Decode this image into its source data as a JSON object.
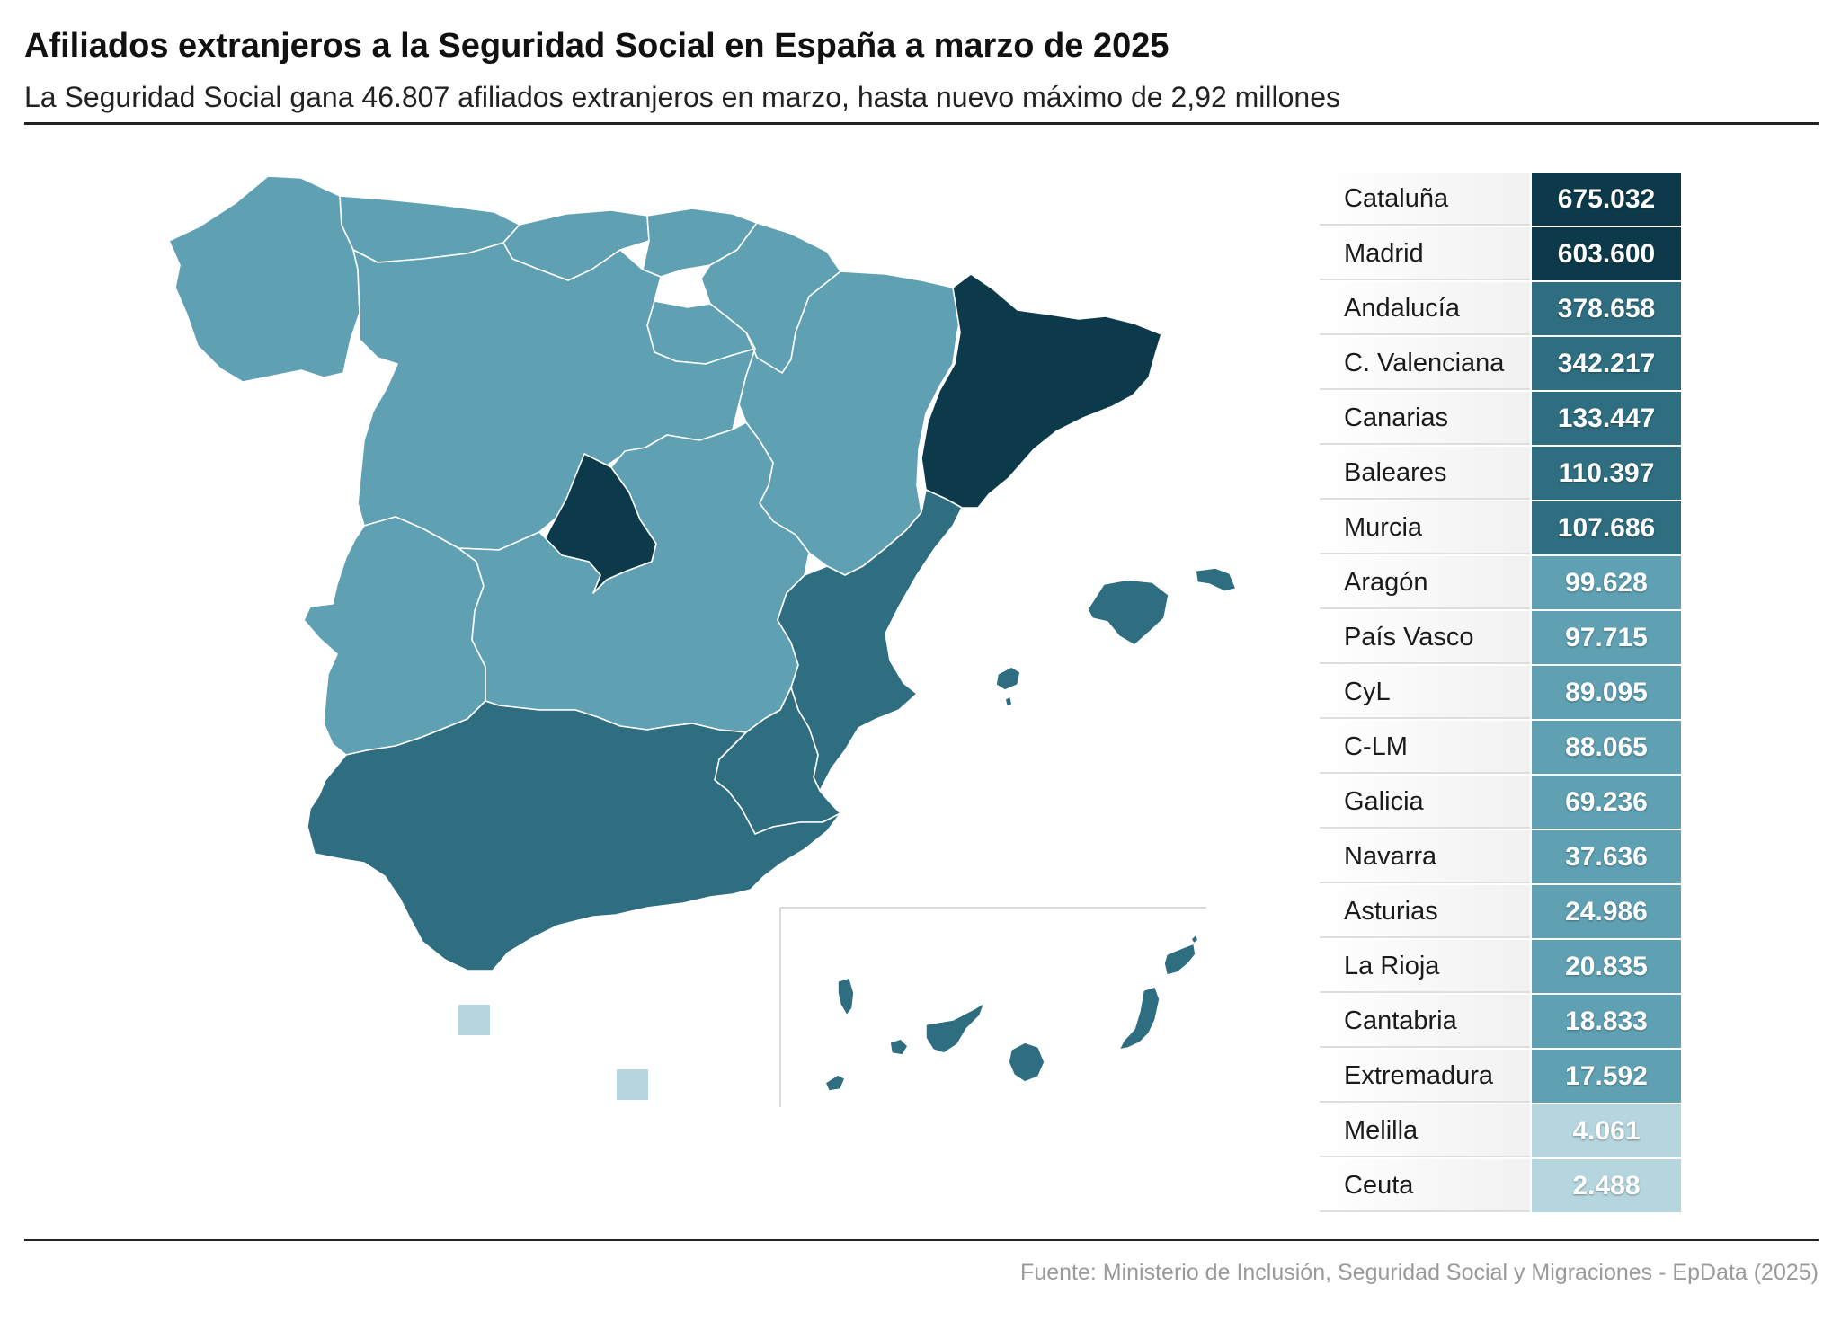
{
  "title": "Afiliados extranjeros a la Seguridad Social en España a marzo de 2025",
  "subtitle": "La Seguridad Social gana 46.807 afiliados extranjeros en marzo, hasta nuevo máximo de 2,92 millones",
  "source": "Fuente: Ministerio de Inclusión, Seguridad Social y Migraciones - EpData (2025)",
  "colors": {
    "tier_highest": "#0d3a4a",
    "tier_high": "#2e6e80",
    "tier_mid": "#5fa1b3",
    "tier_low": "#b5d6df"
  },
  "regions": [
    {
      "name": "Cataluña",
      "value": "675.032",
      "tier": "tier_highest"
    },
    {
      "name": "Madrid",
      "value": "603.600",
      "tier": "tier_highest"
    },
    {
      "name": "Andalucía",
      "value": "378.658",
      "tier": "tier_high"
    },
    {
      "name": "C. Valenciana",
      "value": "342.217",
      "tier": "tier_high"
    },
    {
      "name": "Canarias",
      "value": "133.447",
      "tier": "tier_high"
    },
    {
      "name": "Baleares",
      "value": "110.397",
      "tier": "tier_high"
    },
    {
      "name": "Murcia",
      "value": "107.686",
      "tier": "tier_high"
    },
    {
      "name": "Aragón",
      "value": "99.628",
      "tier": "tier_mid"
    },
    {
      "name": "País Vasco",
      "value": "97.715",
      "tier": "tier_mid"
    },
    {
      "name": "CyL",
      "value": "89.095",
      "tier": "tier_mid"
    },
    {
      "name": "C-LM",
      "value": "88.065",
      "tier": "tier_mid"
    },
    {
      "name": "Galicia",
      "value": "69.236",
      "tier": "tier_mid"
    },
    {
      "name": "Navarra",
      "value": "37.636",
      "tier": "tier_mid"
    },
    {
      "name": "Asturias",
      "value": "24.986",
      "tier": "tier_mid"
    },
    {
      "name": "La Rioja",
      "value": "20.835",
      "tier": "tier_mid"
    },
    {
      "name": "Cantabria",
      "value": "18.833",
      "tier": "tier_mid"
    },
    {
      "name": "Extremadura",
      "value": "17.592",
      "tier": "tier_mid"
    },
    {
      "name": "Melilla",
      "value": "4.061",
      "tier": "tier_low"
    },
    {
      "name": "Ceuta",
      "value": "2.488",
      "tier": "tier_low"
    }
  ]
}
